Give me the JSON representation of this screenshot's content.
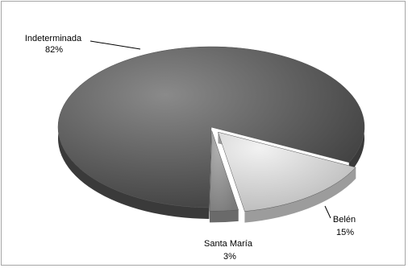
{
  "chart_data": {
    "type": "pie",
    "title": "",
    "categories": [
      "Indeterminada",
      "Belén",
      "Santa María"
    ],
    "values": [
      82,
      15,
      3
    ],
    "value_labels": [
      "82%",
      "15%",
      "3%"
    ],
    "colors": {
      "Indeterminada": "#5f5f5f",
      "Belén": "#d2d2d2",
      "Santa María": "#8f8f8f"
    },
    "legend": "none",
    "style": "3d-exploded"
  }
}
